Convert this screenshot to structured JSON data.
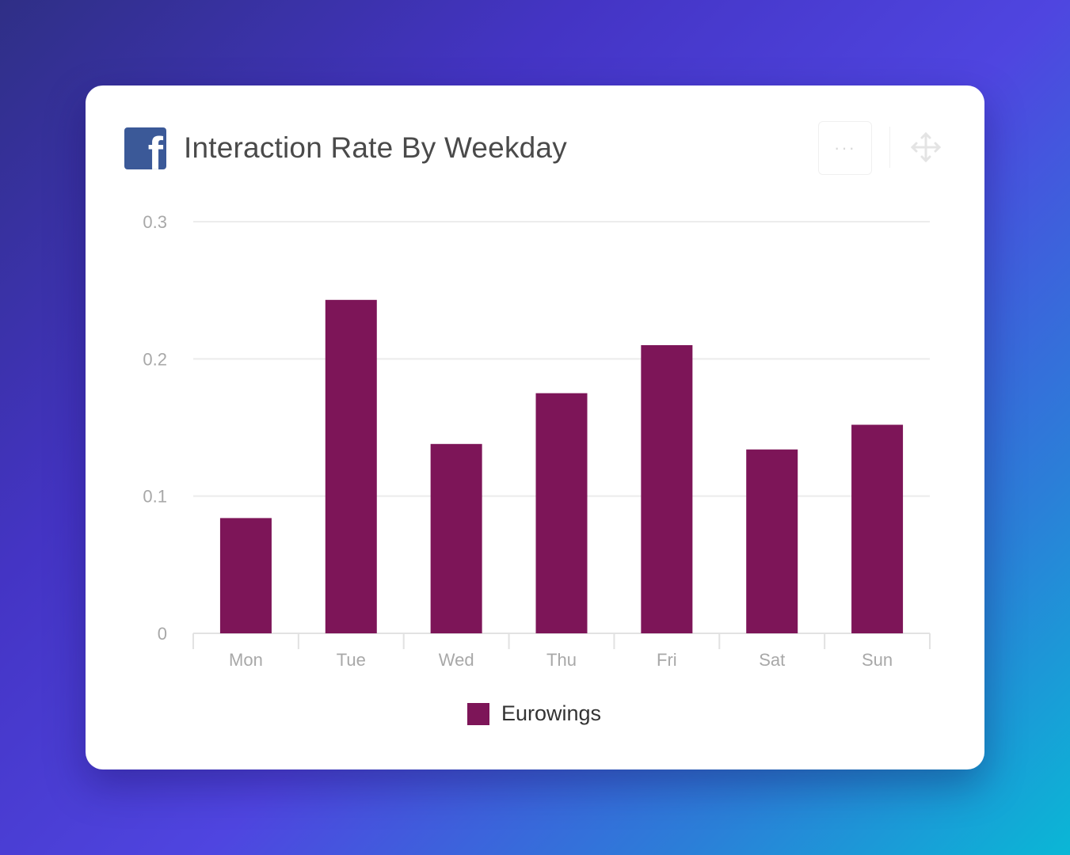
{
  "widget": {
    "title": "Interaction Rate By Weekday",
    "logo_icon": "facebook-logo-icon",
    "logo_glyph": "f",
    "more_label": "···",
    "move_icon": "move-arrows-icon"
  },
  "chart_data": {
    "type": "bar",
    "title": "Interaction Rate By Weekday",
    "xlabel": "",
    "ylabel": "",
    "categories": [
      "Mon",
      "Tue",
      "Wed",
      "Thu",
      "Fri",
      "Sat",
      "Sun"
    ],
    "series": [
      {
        "name": "Eurowings",
        "color": "#7d1558",
        "values": [
          0.084,
          0.243,
          0.138,
          0.175,
          0.21,
          0.134,
          0.152
        ]
      }
    ],
    "ylim": [
      0,
      0.3
    ],
    "yticks": [
      {
        "value": 0,
        "label": "0"
      },
      {
        "value": 0.1,
        "label": "0.1"
      },
      {
        "value": 0.2,
        "label": "0.2"
      },
      {
        "value": 0.3,
        "label": "0.3"
      }
    ],
    "grid": true,
    "legend_position": "bottom-center"
  }
}
